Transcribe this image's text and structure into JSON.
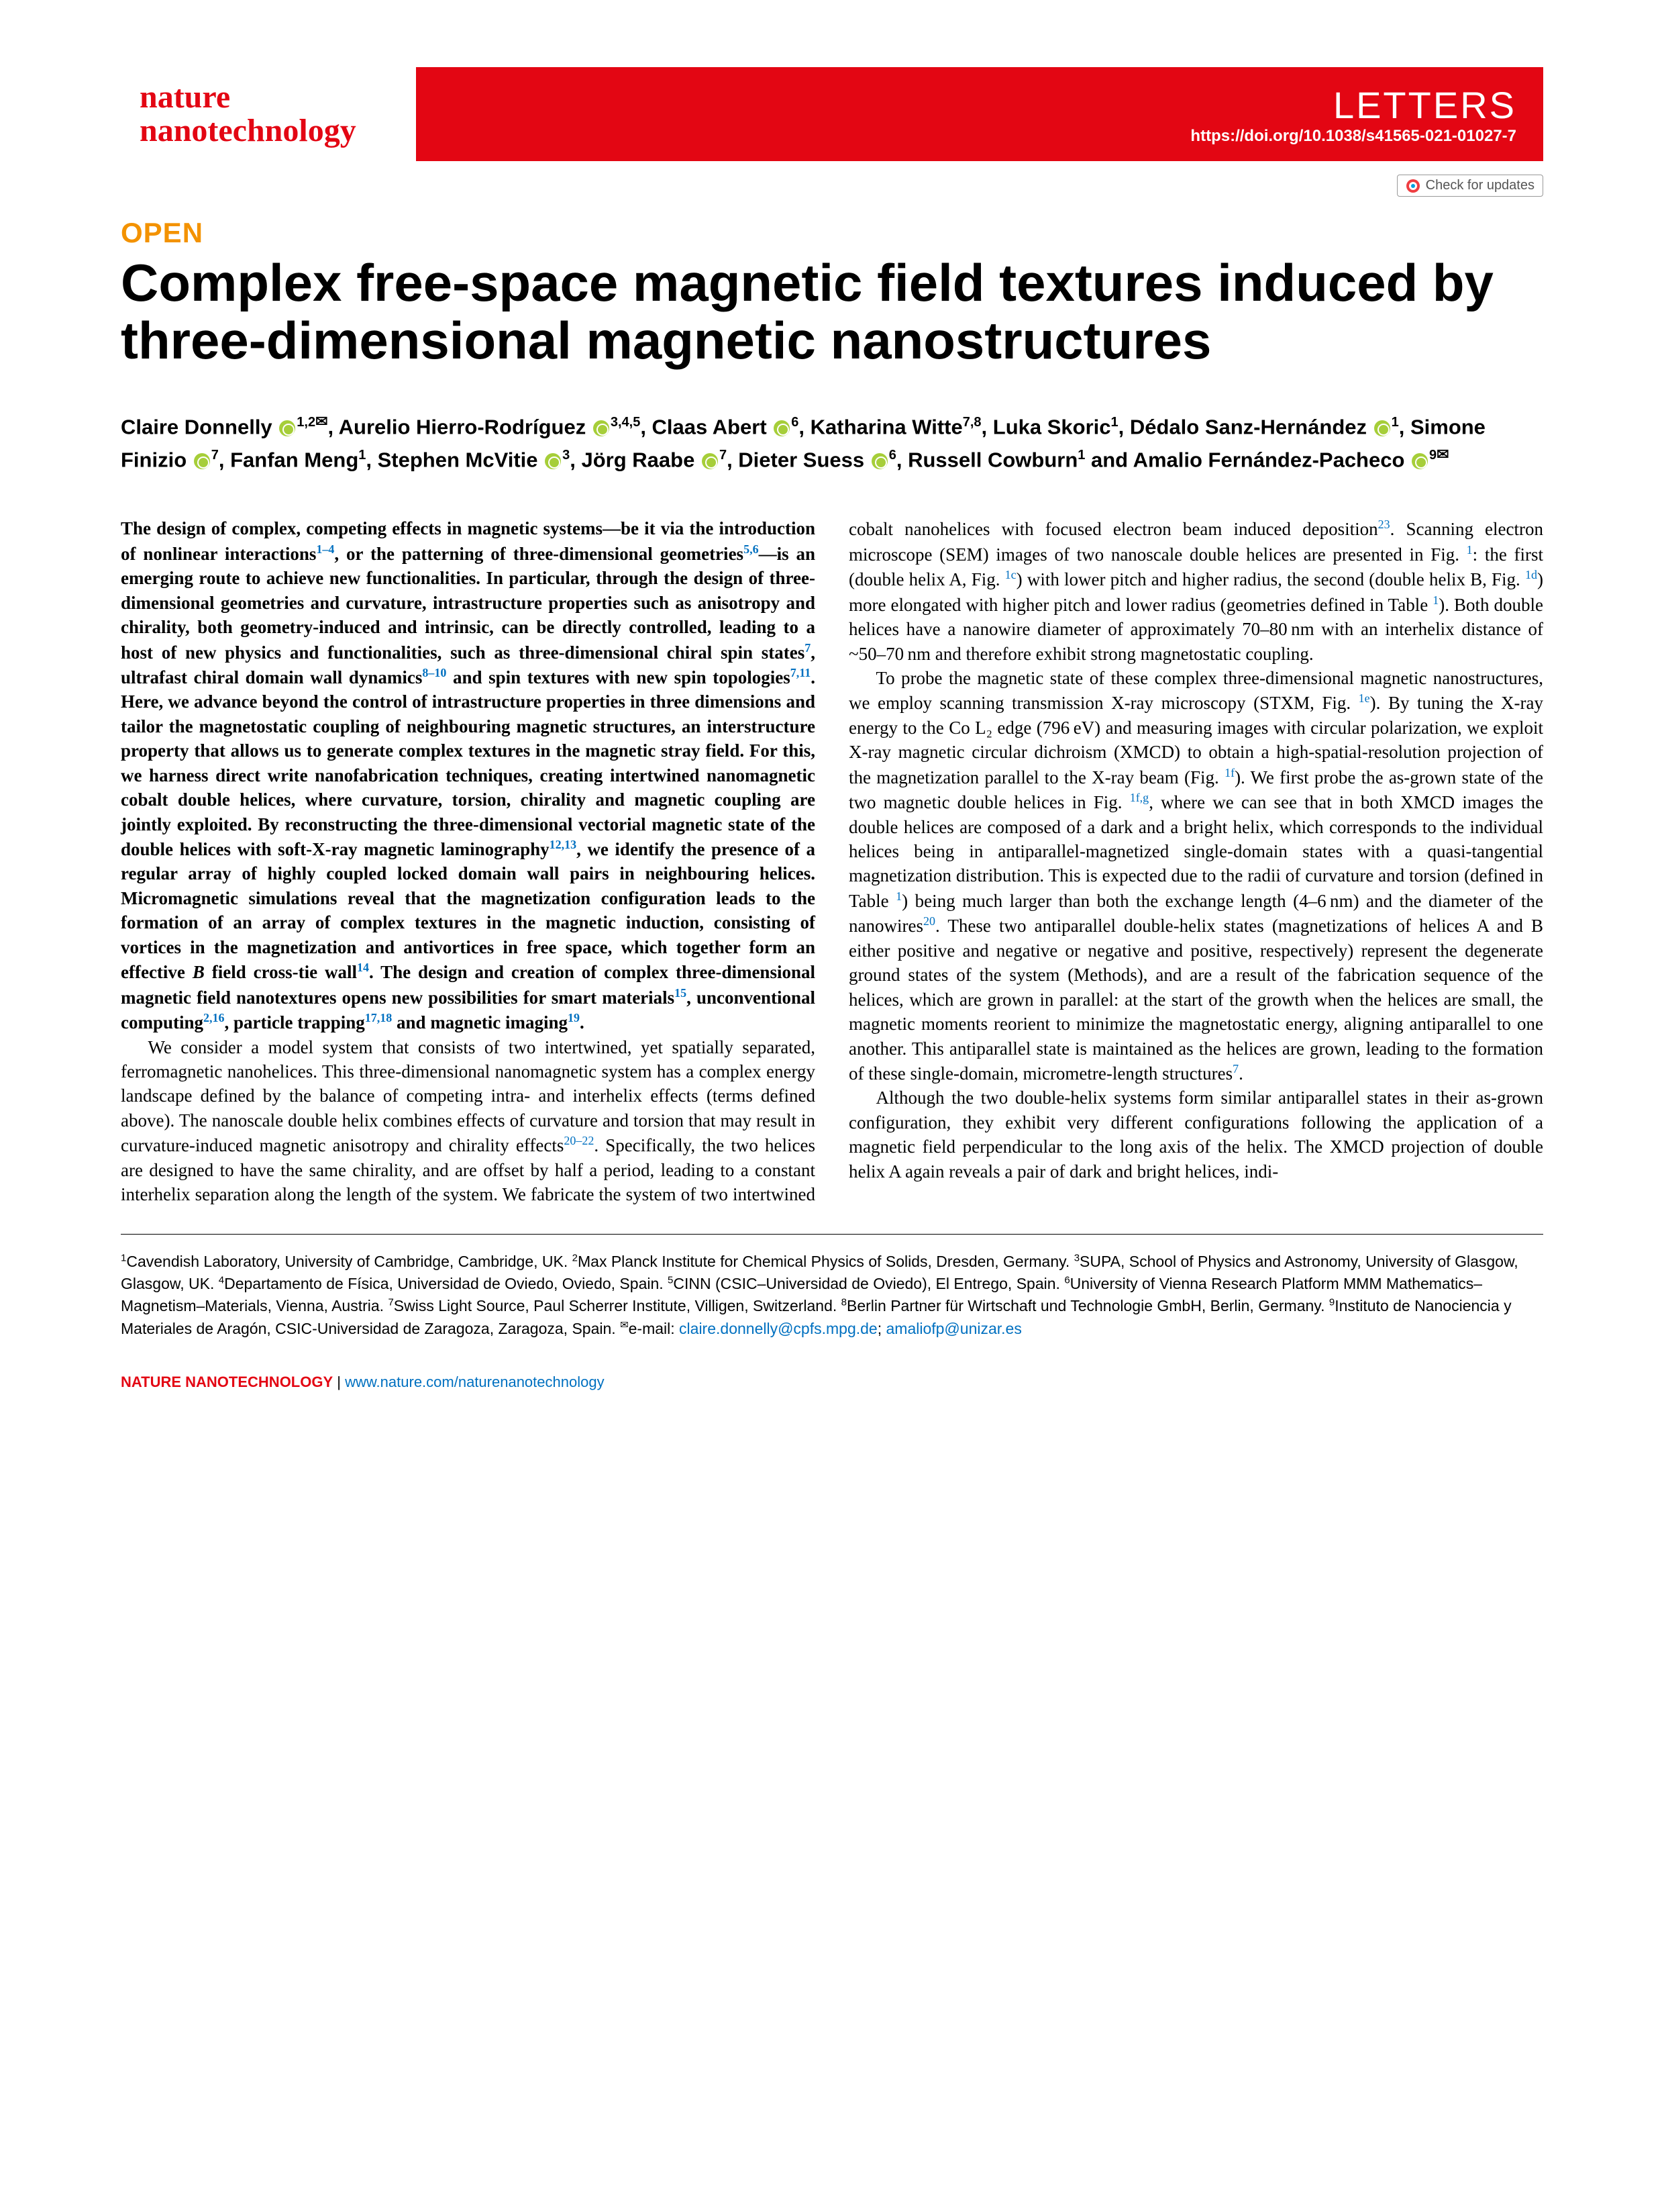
{
  "journal": {
    "line1": "nature",
    "line2": "nanotechnology"
  },
  "header": {
    "section": "LETTERS",
    "doi": "https://doi.org/10.1038/s41565-021-01027-7",
    "check_updates": "Check for updates"
  },
  "open": "OPEN",
  "title": "Complex free-space magnetic field textures induced by three-dimensional magnetic nanostructures",
  "authors_html": "Claire Donnelly {orcid}<span class='sup'>1,2</span><span class='mail'>✉</span>, Aurelio Hierro-Rodríguez {orcid}<span class='sup'>3,4,5</span>, Claas Abert {orcid}<span class='sup'>6</span>, Katharina Witte<span class='sup'>7,8</span>, Luka Skoric<span class='sup'>1</span>, Dédalo Sanz-Hernández {orcid}<span class='sup'>1</span>, Simone Finizio {orcid}<span class='sup'>7</span>, Fanfan Meng<span class='sup'>1</span>, Stephen McVitie {orcid}<span class='sup'>3</span>, Jörg Raabe {orcid}<span class='sup'>7</span>, Dieter Suess {orcid}<span class='sup'>6</span>, Russell Cowburn<span class='sup'>1</span> and Amalio Fernández-Pacheco {orcid}<span class='sup'>9</span><span class='mail'>✉</span>",
  "abstract": "The design of complex, competing effects in magnetic systems—be it via the introduction of nonlinear interactions<span class='ref-sup'>1–4</span>, or the patterning of three-dimensional geometries<span class='ref-sup'>5,6</span>—is an emerging route to achieve new functionalities. In particular, through the design of three-dimensional geometries and curvature, intrastructure properties such as anisotropy and chirality, both geometry-induced and intrinsic, can be directly controlled, leading to a host of new physics and functionalities, such as three-dimensional chiral spin states<span class='ref-sup'>7</span>, ultrafast chiral domain wall dynamics<span class='ref-sup'>8–10</span> and spin textures with new spin topologies<span class='ref-sup'>7,11</span>. Here, we advance beyond the control of intrastructure properties in three dimensions and tailor the magnetostatic coupling of neighbouring magnetic structures, an interstructure property that allows us to generate complex textures in the magnetic stray field. For this, we harness direct write nanofabrication techniques, creating intertwined nanomagnetic cobalt double helices, where curvature, torsion, chirality and magnetic coupling are jointly exploited. By reconstructing the three-dimensional vectorial magnetic state of the double helices with soft-X-ray magnetic laminography<span class='ref-sup'>12,13</span>, we identify the presence of a regular array of highly coupled locked domain wall pairs in neighbouring helices. Micromagnetic simulations reveal that the magnetization configuration leads to the formation of an array of complex textures in the magnetic induction, consisting of vortices in the magnetization and antivortices in free space, which together form an effective <span class='ital'>B</span> field cross-tie wall<span class='ref-sup'>14</span>. The design and creation of complex three-dimensional magnetic field nanotextures opens new possibilities for smart materials<span class='ref-sup'>15</span>, unconventional computing<span class='ref-sup'>2,16</span>, particle trapping<span class='ref-sup'>17,18</span> and magnetic imaging<span class='ref-sup'>19</span>.",
  "body_p1": "We consider a model system that consists of two intertwined, yet spatially separated, ferromagnetic nanohelices. This three-dimensional nanomagnetic system has a complex energy landscape defined by the balance of competing intra- and interhelix effects (terms defined above). The nanoscale double helix combines effects of curvature and torsion that may result in curvature-induced magnetic anisotropy and chirality effects<span class='ref-sup'>20–22</span>. Specifically, the two helices are designed to have the same chirality, and are offset by half a period, leading to a constant interhelix separation along the length of the system. We fabricate the system of two intertwined cobalt nanohelices with focused electron beam induced deposition<span class='ref-sup'>23</span>. Scanning electron microscope (SEM) images of two nanoscale double helices are presented in Fig. <span class='ref-sup'>1</span>: the first (double helix A, Fig. <span class='ref-sup'>1c</span>) with lower pitch and higher radius, the second (double helix B, Fig. <span class='ref-sup'>1d</span>) more elongated with higher pitch and lower radius (geometries defined in Table <span class='ref-sup'>1</span>). Both double helices have a nanowire diameter of approximately 70–80 nm with an interhelix distance of ~50–70 nm and therefore exhibit strong magnetostatic coupling.",
  "body_p2": "To probe the magnetic state of these complex three-dimensional magnetic nanostructures, we employ scanning transmission X-ray microscopy (STXM, Fig. <span class='ref-sup'>1e</span>). By tuning the X-ray energy to the Co L₂ edge (796 eV) and measuring images with circular polarization, we exploit X-ray magnetic circular dichroism (XMCD) to obtain a high-spatial-resolution projection of the magnetization parallel to the X-ray beam (Fig. <span class='ref-sup'>1f</span>). We first probe the as-grown state of the two magnetic double helices in Fig. <span class='ref-sup'>1f,g</span>, where we can see that in both XMCD images the double helices are composed of a dark and a bright helix, which corresponds to the individual helices being in antiparallel-magnetized single-domain states with a quasi-tangential magnetization distribution. This is expected due to the radii of curvature and torsion (defined in Table <span class='ref-sup'>1</span>) being much larger than both the exchange length (4–6 nm) and the diameter of the nanowires<span class='ref-sup'>20</span>. These two antiparallel double-helix states (magnetizations of helices A and B either positive and negative or negative and positive, respectively) represent the degenerate ground states of the system (Methods), and are a result of the fabrication sequence of the helices, which are grown in parallel: at the start of the growth when the helices are small, the magnetic moments reorient to minimize the magnetostatic energy, aligning antiparallel to one another. This antiparallel state is maintained as the helices are grown, leading to the formation of these single-domain, micrometre-length structures<span class='ref-sup'>7</span>.",
  "body_p3": "Although the two double-helix systems form similar antiparallel states in their as-grown configuration, they exhibit very different configurations following the application of a magnetic field perpendicular to the long axis of the helix. The XMCD projection of double helix A again reveals a pair of dark and bright helices, indi-",
  "affiliations": "<span class='sup'>1</span>Cavendish Laboratory, University of Cambridge, Cambridge, UK. <span class='sup'>2</span>Max Planck Institute for Chemical Physics of Solids, Dresden, Germany. <span class='sup'>3</span>SUPA, School of Physics and Astronomy, University of Glasgow, Glasgow, UK. <span class='sup'>4</span>Departamento de Física, Universidad de Oviedo, Oviedo, Spain. <span class='sup'>5</span>CINN (CSIC–Universidad de Oviedo), El Entrego, Spain. <span class='sup'>6</span>University of Vienna Research Platform MMM Mathematics–Magnetism–Materials, Vienna, Austria. <span class='sup'>7</span>Swiss Light Source, Paul Scherrer Institute, Villigen, Switzerland. <span class='sup'>8</span>Berlin Partner für Wirtschaft und Technologie GmbH, Berlin, Germany. <span class='sup'>9</span>Instituto de Nanociencia y Materiales de Aragón, CSIC-Universidad de Zaragoza, Zaragoza, Spain. <span class='sup'>✉</span>e-mail: <span class='email'>claire.donnelly@cpfs.mpg.de</span>; <span class='email'>amaliofp@unizar.es</span>",
  "footer": {
    "brand": "NATURE NANOTECHNOLOGY",
    "sep": " | ",
    "url": "www.nature.com/naturenanotechnology"
  }
}
